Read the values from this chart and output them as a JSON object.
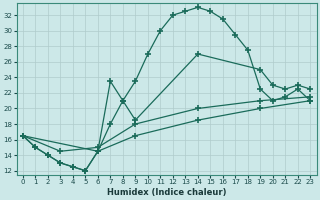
{
  "xlabel": "Humidex (Indice chaleur)",
  "background_color": "#cce8e8",
  "grid_color": "#b8d4d4",
  "line_color": "#1a6b5a",
  "xlim": [
    -0.5,
    23.5
  ],
  "ylim": [
    11.5,
    33.5
  ],
  "yticks": [
    12,
    14,
    16,
    18,
    20,
    22,
    24,
    26,
    28,
    30,
    32
  ],
  "xtick_labels": [
    "0",
    "1",
    "2",
    "3",
    "4",
    "5",
    "6",
    "7",
    "8",
    "9",
    "10",
    "11",
    "12",
    "13",
    "14",
    "15",
    "16",
    "17",
    "18",
    "19",
    "20",
    "21",
    "22",
    "23"
  ],
  "xticks": [
    0,
    1,
    2,
    3,
    4,
    5,
    6,
    7,
    8,
    9,
    10,
    11,
    12,
    13,
    14,
    15,
    16,
    17,
    18,
    19,
    20,
    21,
    22,
    23
  ],
  "line1_x": [
    0,
    1,
    2,
    3,
    4,
    5,
    6,
    7,
    8,
    9,
    10,
    11,
    12,
    13,
    14,
    15,
    16,
    17,
    18,
    19,
    20,
    21,
    22,
    23
  ],
  "line1_y": [
    16.5,
    15.0,
    14.0,
    13.0,
    12.5,
    12.0,
    14.5,
    18.0,
    21.0,
    23.5,
    27.0,
    30.0,
    32.0,
    32.5,
    33.0,
    32.5,
    31.5,
    29.5,
    27.5,
    22.5,
    21.0,
    21.5,
    22.5,
    21.0
  ],
  "line2_x": [
    0,
    1,
    2,
    3,
    4,
    5,
    6,
    7,
    8,
    9,
    14,
    19,
    20,
    21,
    22,
    23
  ],
  "line2_y": [
    16.5,
    15.0,
    14.0,
    13.0,
    12.5,
    12.0,
    14.5,
    23.5,
    21.0,
    18.5,
    27.0,
    25.0,
    23.0,
    22.5,
    23.0,
    22.5
  ],
  "line3_x": [
    0,
    3,
    6,
    9,
    14,
    19,
    23
  ],
  "line3_y": [
    16.5,
    14.5,
    15.0,
    18.0,
    20.0,
    21.0,
    21.5
  ],
  "line4_x": [
    0,
    6,
    9,
    14,
    19,
    23
  ],
  "line4_y": [
    16.5,
    14.5,
    16.5,
    18.5,
    20.0,
    21.0
  ]
}
